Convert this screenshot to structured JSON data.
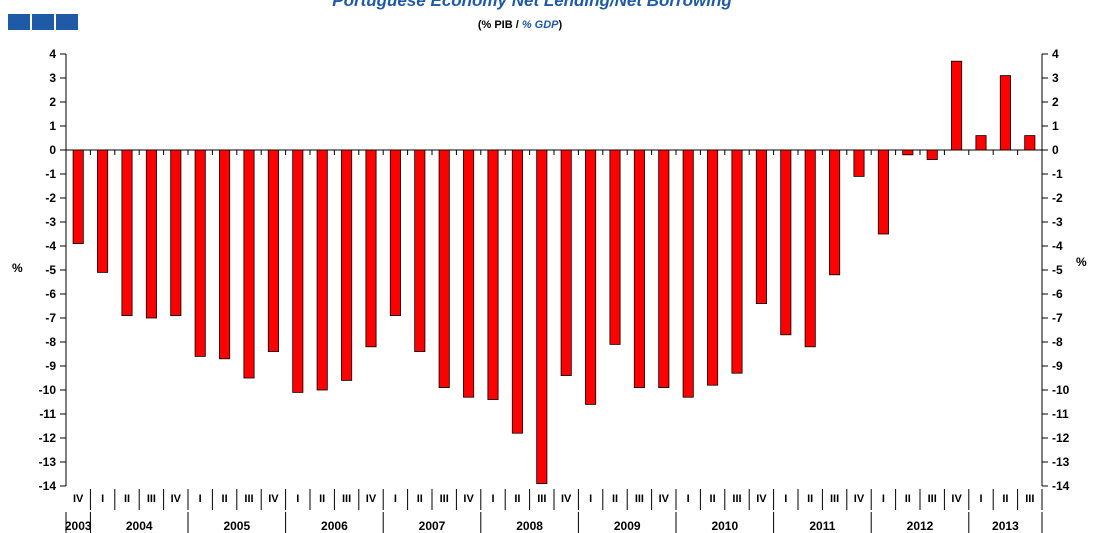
{
  "logo_colors": [
    "#1f5aa6",
    "#1f5aa6",
    "#1f5aa6"
  ],
  "chart_data": {
    "type": "bar",
    "title": "Portuguese Economy Net Lending/Net Borrowing",
    "subtitle_pt": "(% PIB / ",
    "subtitle_en": "% GDP",
    "subtitle_close": ")",
    "ylabel_left": "%",
    "ylabel_right": "%",
    "ylim": [
      -14,
      4
    ],
    "yticks": [
      4,
      3,
      2,
      1,
      0,
      -1,
      -2,
      -3,
      -4,
      -5,
      -6,
      -7,
      -8,
      -9,
      -10,
      -11,
      -12,
      -13,
      -14
    ],
    "bar_color": "#ff0000",
    "quarters": [
      "IV",
      "I",
      "II",
      "III",
      "IV",
      "I",
      "II",
      "III",
      "IV",
      "I",
      "II",
      "III",
      "IV",
      "I",
      "II",
      "III",
      "IV",
      "I",
      "II",
      "III",
      "IV",
      "I",
      "II",
      "III",
      "IV",
      "I",
      "II",
      "III",
      "IV",
      "I",
      "II",
      "III",
      "IV",
      "I",
      "II",
      "III",
      "IV",
      "I",
      "II",
      "III"
    ],
    "years": [
      {
        "label": "2003",
        "span": 1
      },
      {
        "label": "2004",
        "span": 4
      },
      {
        "label": "2005",
        "span": 4
      },
      {
        "label": "2006",
        "span": 4
      },
      {
        "label": "2007",
        "span": 4
      },
      {
        "label": "2008",
        "span": 4
      },
      {
        "label": "2009",
        "span": 4
      },
      {
        "label": "2010",
        "span": 4
      },
      {
        "label": "2011",
        "span": 4
      },
      {
        "label": "2012",
        "span": 4
      },
      {
        "label": "2013",
        "span": 3
      }
    ],
    "values": [
      -3.9,
      -5.1,
      -6.9,
      -7.0,
      -6.9,
      -8.6,
      -8.7,
      -9.5,
      -8.4,
      -10.1,
      -10.0,
      -9.6,
      -8.2,
      -6.9,
      -8.4,
      -9.9,
      -10.3,
      -10.4,
      -11.8,
      -13.9,
      -9.4,
      -10.6,
      -8.1,
      -9.9,
      -9.9,
      -10.3,
      -9.8,
      -9.3,
      -6.4,
      -7.7,
      -8.2,
      -5.2,
      -1.1,
      -3.5,
      -0.2,
      -0.4,
      3.7,
      0.6,
      3.1,
      0.6
    ]
  }
}
